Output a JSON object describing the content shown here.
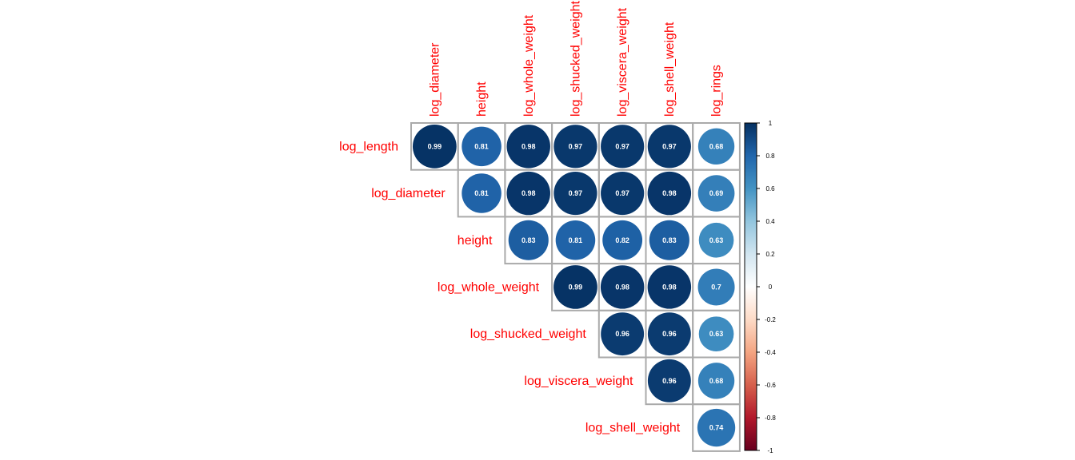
{
  "chart_data": {
    "type": "heatmap",
    "rows": [
      "log_length",
      "log_diameter",
      "height",
      "log_whole_weight",
      "log_shucked_weight",
      "log_viscera_weight",
      "log_shell_weight"
    ],
    "columns": [
      "log_diameter",
      "height",
      "log_whole_weight",
      "log_shucked_weight",
      "log_viscera_weight",
      "log_shell_weight",
      "log_rings"
    ],
    "matrix": [
      [
        0.99,
        0.81,
        0.98,
        0.97,
        0.97,
        0.97,
        0.68
      ],
      [
        null,
        0.81,
        0.98,
        0.97,
        0.97,
        0.98,
        0.69
      ],
      [
        null,
        null,
        0.83,
        0.81,
        0.82,
        0.83,
        0.63
      ],
      [
        null,
        null,
        null,
        0.99,
        0.98,
        0.98,
        0.7
      ],
      [
        null,
        null,
        null,
        null,
        0.96,
        0.96,
        0.63
      ],
      [
        null,
        null,
        null,
        null,
        null,
        0.96,
        0.68
      ],
      [
        null,
        null,
        null,
        null,
        null,
        null,
        0.74
      ]
    ],
    "color_scale": {
      "range": [
        -1,
        1
      ],
      "tick_labels": [
        "1",
        "0.8",
        "0.6",
        "0.4",
        "0.2",
        "0",
        "-0.2",
        "-0.4",
        "-0.6",
        "-0.8",
        "-1"
      ],
      "tick_values": [
        1,
        0.8,
        0.6,
        0.4,
        0.2,
        0,
        -0.2,
        -0.4,
        -0.6,
        -0.8,
        -1
      ],
      "colors": [
        "#67001f",
        "#b2182b",
        "#d6604d",
        "#f4a582",
        "#fddbc7",
        "#ffffff",
        "#d1e5f0",
        "#92c5de",
        "#4393c3",
        "#2166ac",
        "#053061"
      ]
    },
    "label_color": "#ff0000",
    "grid_color": "#aaaaaa",
    "legend_position": "right"
  }
}
